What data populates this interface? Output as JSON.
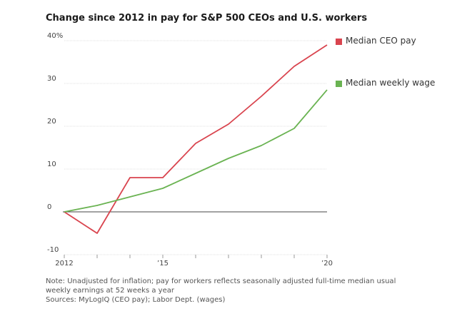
{
  "chart_data": {
    "type": "line",
    "title": "Change since 2012 in pay for S&P 500 CEOs and U.S. workers",
    "x": [
      2012,
      2013,
      2014,
      2015,
      2016,
      2017,
      2018,
      2019,
      2020
    ],
    "x_tick_values": [
      2012,
      2015,
      2020
    ],
    "x_tick_labels": [
      "2012",
      "’15",
      "’20"
    ],
    "xlim": [
      2012,
      2020
    ],
    "ylim": [
      -10,
      40
    ],
    "y_tick_values": [
      -10,
      0,
      10,
      20,
      30,
      40
    ],
    "y_tick_labels": [
      "-10",
      "0",
      "10",
      "20",
      "30",
      "40%"
    ],
    "zero_line": 0,
    "grid": true,
    "legend_position": "right",
    "series": [
      {
        "name": "Median CEO pay",
        "color": "#d9444e",
        "values": [
          0,
          -5,
          8,
          8,
          16,
          20.5,
          27,
          34,
          39
        ]
      },
      {
        "name": "Median weekly wage",
        "color": "#6ab352",
        "values": [
          0,
          1.5,
          3.5,
          5.5,
          9,
          12.5,
          15.5,
          19.5,
          28.5
        ]
      }
    ]
  },
  "notes": {
    "note": "Note: Unadjusted for inflation; pay for workers reflects seasonally adjusted full-time median usual weekly earnings at 52 weeks a year",
    "sources": "Sources: MyLogIQ (CEO pay); Labor Dept. (wages)"
  }
}
